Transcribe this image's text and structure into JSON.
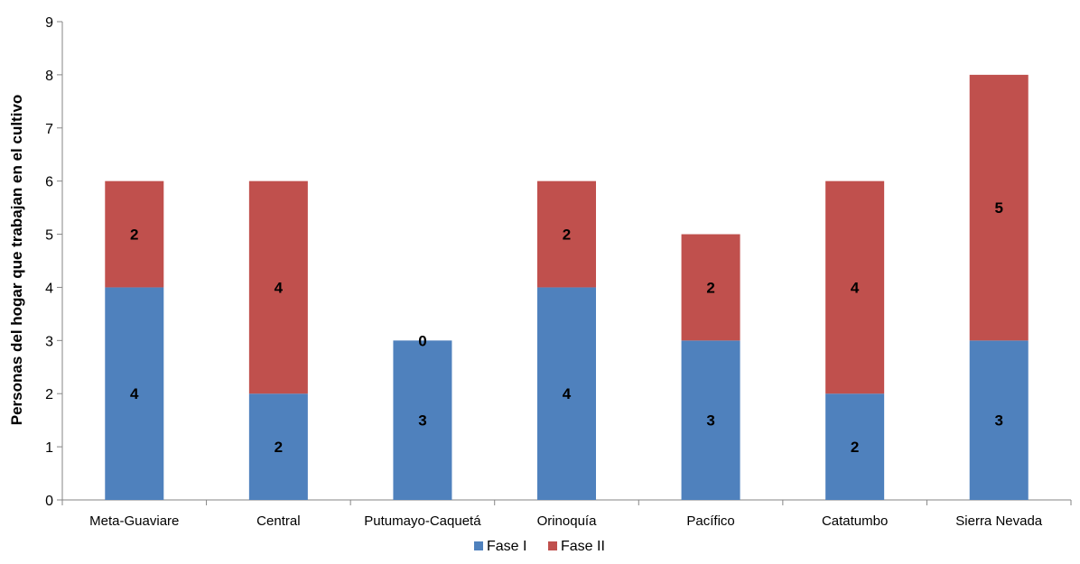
{
  "chart_data": {
    "type": "bar",
    "stacked": true,
    "categories": [
      "Meta-Guaviare",
      "Central",
      "Putumayo-Caquetá",
      "Orinoquía",
      "Pacífico",
      "Catatumbo",
      "Sierra Nevada"
    ],
    "series": [
      {
        "name": "Fase I",
        "color": "#4f81bd",
        "values": [
          4,
          2,
          3,
          4,
          3,
          2,
          3
        ]
      },
      {
        "name": "Fase II",
        "color": "#c0504d",
        "values": [
          2,
          4,
          0,
          2,
          2,
          4,
          5
        ]
      }
    ],
    "xlabel": "",
    "ylabel": "Personas del hogar que trabajan en el cultivo",
    "ylim": [
      0,
      9
    ],
    "yticks": [
      0,
      1,
      2,
      3,
      4,
      5,
      6,
      7,
      8,
      9
    ],
    "grid": false,
    "legend_position": "bottom"
  }
}
